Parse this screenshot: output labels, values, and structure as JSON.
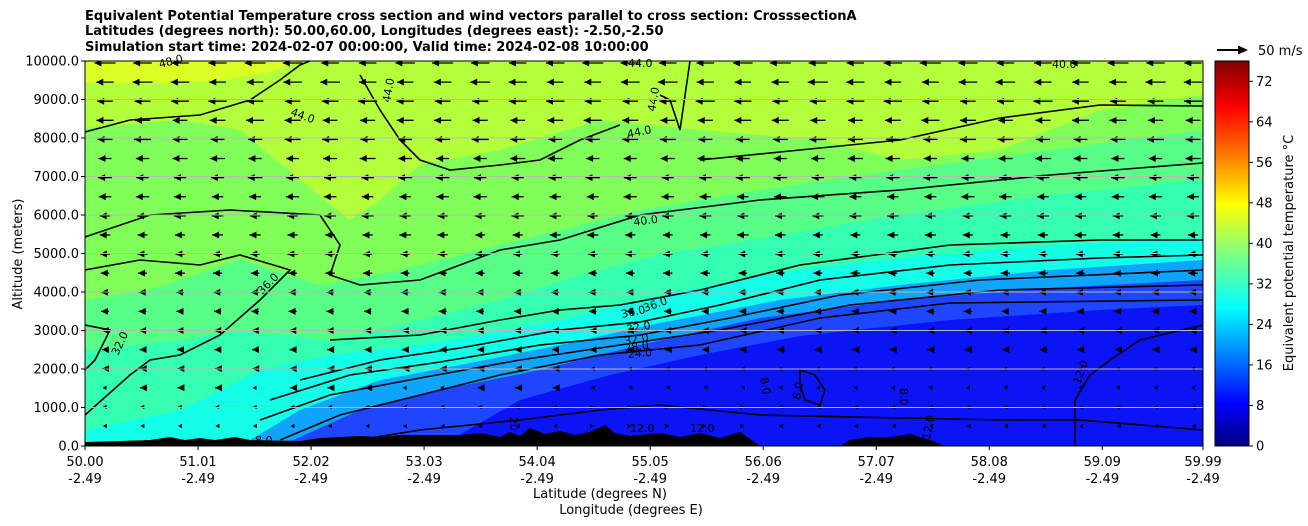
{
  "chart_data": {
    "type": "heatmap",
    "title_lines": [
      "Equivalent Potential Temperature cross section and wind vectors parallel to cross section: CrosssectionA",
      "Latitudes (degrees north): 50.00,60.00, Longitudes (degrees east): -2.50,-2.50",
      "Simulation start time: 2024-02-07 00:00:00, Valid time: 2024-02-08 10:00:00"
    ],
    "xlabel": "Latitude (degrees N)",
    "xlabel2": "Longitude (degrees E)",
    "ylabel": "Altitude (meters)",
    "xlim": [
      50.0,
      59.99
    ],
    "ylim": [
      0,
      10000
    ],
    "x_ticks": [
      {
        "lat": "50.00",
        "lon": "-2.49"
      },
      {
        "lat": "51.01",
        "lon": "-2.49"
      },
      {
        "lat": "52.02",
        "lon": "-2.49"
      },
      {
        "lat": "53.03",
        "lon": "-2.49"
      },
      {
        "lat": "54.04",
        "lon": "-2.49"
      },
      {
        "lat": "55.05",
        "lon": "-2.49"
      },
      {
        "lat": "56.06",
        "lon": "-2.49"
      },
      {
        "lat": "57.07",
        "lon": "-2.49"
      },
      {
        "lat": "58.08",
        "lon": "-2.49"
      },
      {
        "lat": "59.09",
        "lon": "-2.49"
      },
      {
        "lat": "59.99",
        "lon": "-2.49"
      }
    ],
    "y_ticks": [
      "0.0",
      "1000.0",
      "2000.0",
      "3000.0",
      "4000.0",
      "5000.0",
      "6000.0",
      "7000.0",
      "8000.0",
      "9000.0",
      "10000.0"
    ],
    "grid": "horizontal",
    "colorbar": {
      "label": "Equivalent potential temperature °C",
      "min": 0,
      "max": 76,
      "ticks": [
        "0",
        "8",
        "16",
        "24",
        "32",
        "40",
        "48",
        "56",
        "64",
        "72"
      ]
    },
    "quiver_key": "50 m/s",
    "contour_labels": [
      "48.0",
      "44.0",
      "44.0",
      "44.0",
      "44.0",
      "44.0",
      "40.0",
      "40.0",
      "36.0",
      "36.0",
      "36.0",
      "32.0",
      "32.0",
      "32.0",
      "28.0",
      "24.0",
      "20.0",
      "12.0",
      "12.0",
      "12.0",
      "12.0",
      "8.0",
      "8.0",
      "8.0",
      "8.0"
    ],
    "terrain": "black orography silhouette along the surface",
    "colors": {
      "colormap": [
        "#00007f",
        "#0000ff",
        "#007fff",
        "#00ffff",
        "#7fff7f",
        "#ffff00",
        "#ff7f00",
        "#ff0000",
        "#7f0000"
      ]
    }
  }
}
